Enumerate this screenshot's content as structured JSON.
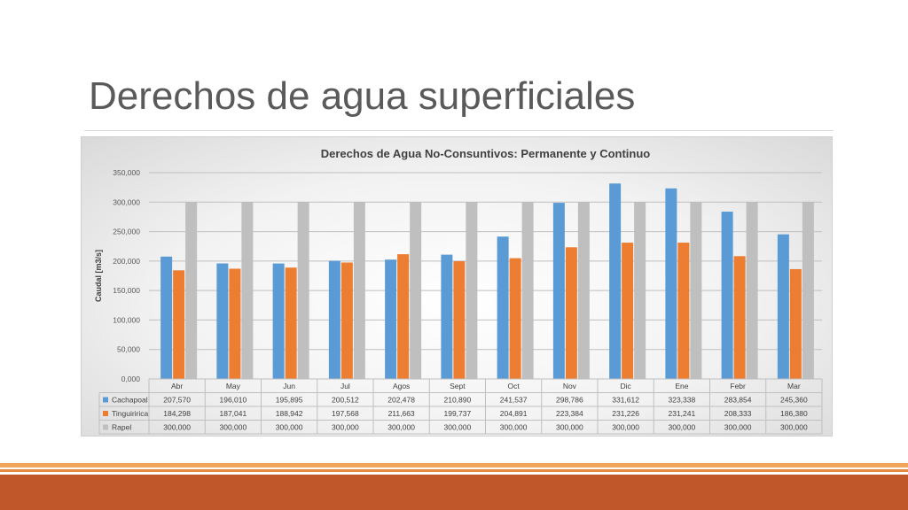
{
  "slide": {
    "title": "Derechos de agua superficiales"
  },
  "colors": {
    "cachapoal": "#5b9bd5",
    "tinguiririca": "#ed7d31",
    "rapel": "#bfbfbf",
    "footer": "#c0572b"
  },
  "chart_data": {
    "type": "bar",
    "title": "Derechos de Agua No-Consuntivos: Permanente y Continuo",
    "xlabel": "",
    "ylabel": "Caudal [m3/s]",
    "ylim": [
      0,
      350000
    ],
    "yticks": [
      "0,000",
      "50,000",
      "100,000",
      "150,000",
      "200,000",
      "250,000",
      "300,000",
      "350,000"
    ],
    "grid": true,
    "legend": "data-table",
    "categories": [
      "Abr",
      "May",
      "Jun",
      "Jul",
      "Agos",
      "Sept",
      "Oct",
      "Nov",
      "Dic",
      "Ene",
      "Febr",
      "Mar"
    ],
    "series": [
      {
        "name": "Cachapoal",
        "values": [
          207570,
          196010,
          195895,
          200512,
          202478,
          210890,
          241537,
          298786,
          331612,
          323338,
          283854,
          245360
        ],
        "labels": [
          "207,570",
          "196,010",
          "195,895",
          "200,512",
          "202,478",
          "210,890",
          "241,537",
          "298,786",
          "331,612",
          "323,338",
          "283,854",
          "245,360"
        ]
      },
      {
        "name": "Tinguiririca",
        "values": [
          184298,
          187041,
          188942,
          197568,
          211663,
          199737,
          204891,
          223384,
          231226,
          231241,
          208333,
          186380
        ],
        "labels": [
          "184,298",
          "187,041",
          "188,942",
          "197,568",
          "211,663",
          "199,737",
          "204,891",
          "223,384",
          "231,226",
          "231,241",
          "208,333",
          "186,380"
        ]
      },
      {
        "name": "Rapel",
        "values": [
          300000,
          300000,
          300000,
          300000,
          300000,
          300000,
          300000,
          300000,
          300000,
          300000,
          300000,
          300000
        ],
        "labels": [
          "300,000",
          "300,000",
          "300,000",
          "300,000",
          "300,000",
          "300,000",
          "300,000",
          "300,000",
          "300,000",
          "300,000",
          "300,000",
          "300,000"
        ]
      }
    ]
  }
}
